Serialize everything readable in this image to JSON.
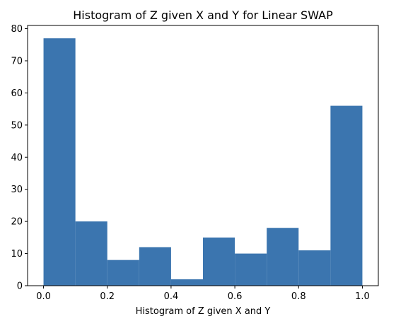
{
  "chart_data": {
    "type": "bar",
    "title": "Histogram of Z given X and Y for Linear SWAP",
    "xlabel": "Histogram of Z given X and Y",
    "ylabel": "",
    "bin_edges": [
      0.0,
      0.1,
      0.2,
      0.3,
      0.4,
      0.5,
      0.6,
      0.7,
      0.8,
      0.9,
      1.0
    ],
    "values": [
      77,
      20,
      8,
      12,
      2,
      15,
      10,
      18,
      11,
      56
    ],
    "xlim": [
      -0.05,
      1.05
    ],
    "ylim": [
      0,
      81
    ],
    "xticks": [
      0.0,
      0.2,
      0.4,
      0.6,
      0.8,
      1.0
    ],
    "xtick_labels": [
      "0.0",
      "0.2",
      "0.4",
      "0.6",
      "0.8",
      "1.0"
    ],
    "yticks": [
      0,
      10,
      20,
      30,
      40,
      50,
      60,
      70,
      80
    ],
    "ytick_labels": [
      "0",
      "10",
      "20",
      "30",
      "40",
      "50",
      "60",
      "70",
      "80"
    ],
    "grid": false,
    "bar_color": "#3b75af"
  }
}
